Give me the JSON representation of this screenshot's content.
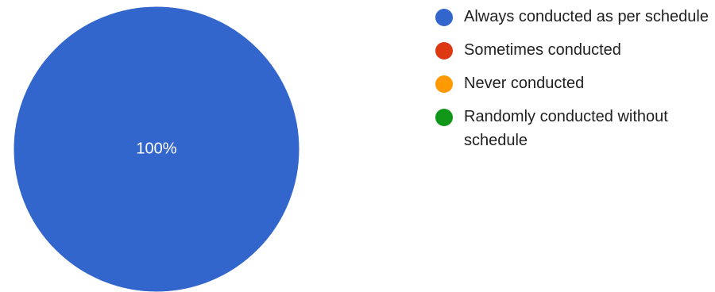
{
  "chart_data": {
    "type": "pie",
    "categories": [
      "Always conducted as per schedule",
      "Sometimes conducted",
      "Never conducted",
      "Randomly conducted without schedule"
    ],
    "values": [
      100,
      0,
      0,
      0
    ],
    "slice_labels": [
      "100%"
    ],
    "colors": [
      "#3366cc",
      "#dc3912",
      "#ff9900",
      "#109618"
    ],
    "legend_position": "right"
  },
  "legend": {
    "items": [
      {
        "label": "Always conducted as per schedule",
        "color": "#3366cc"
      },
      {
        "label": "Sometimes conducted",
        "color": "#dc3912"
      },
      {
        "label": "Never conducted",
        "color": "#ff9900"
      },
      {
        "label": "Randomly conducted without schedule",
        "color": "#109618"
      }
    ]
  }
}
